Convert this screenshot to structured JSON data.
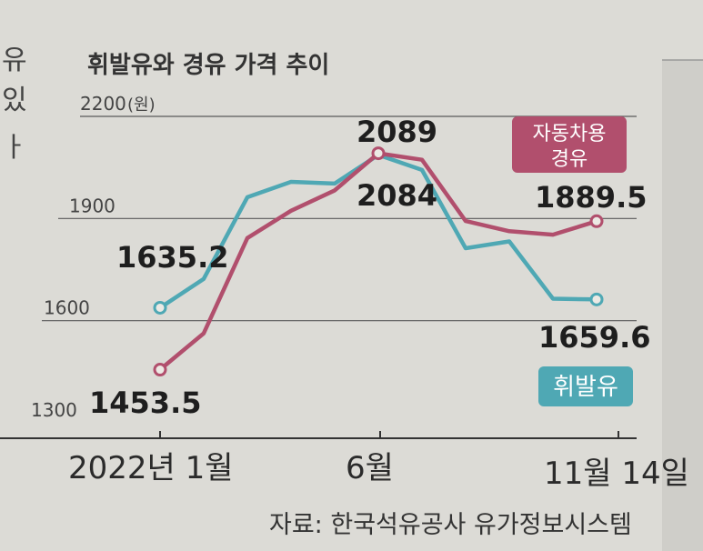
{
  "side_fragment": [
    "유",
    "있",
    "ㅏ"
  ],
  "chart_data": {
    "type": "line",
    "title": "휘발유와 경유 가격 추이",
    "ylabel_unit": "(원)",
    "ylim": [
      1300,
      2200
    ],
    "yticks": [
      "2200",
      "1900",
      "1600",
      "1300"
    ],
    "x_labels": [
      "2022년 1월",
      "6월",
      "11월 14일"
    ],
    "series": [
      {
        "name": "휘발유",
        "color": "#4fa8b4",
        "values": [
          1635.2,
          1720,
          1960,
          2005,
          2000,
          2084,
          2040,
          1810,
          1830,
          1662,
          1659.6
        ],
        "labels": [
          {
            "index": 0,
            "text": "1635.2"
          },
          {
            "index": 5,
            "text": "2084"
          },
          {
            "index": 10,
            "text": "1659.6"
          }
        ]
      },
      {
        "name": "자동차용\n경유",
        "name_lines": [
          "자동차용",
          "경유"
        ],
        "color": "#b14f6d",
        "values": [
          1453.5,
          1560,
          1840,
          1920,
          1980,
          2089,
          2070,
          1890,
          1860,
          1850,
          1889.5
        ],
        "labels": [
          {
            "index": 0,
            "text": "1453.5"
          },
          {
            "index": 5,
            "text": "2089"
          },
          {
            "index": 10,
            "text": "1889.5"
          }
        ]
      }
    ],
    "source": "자료: 한국석유공사 유가정보시스템"
  }
}
